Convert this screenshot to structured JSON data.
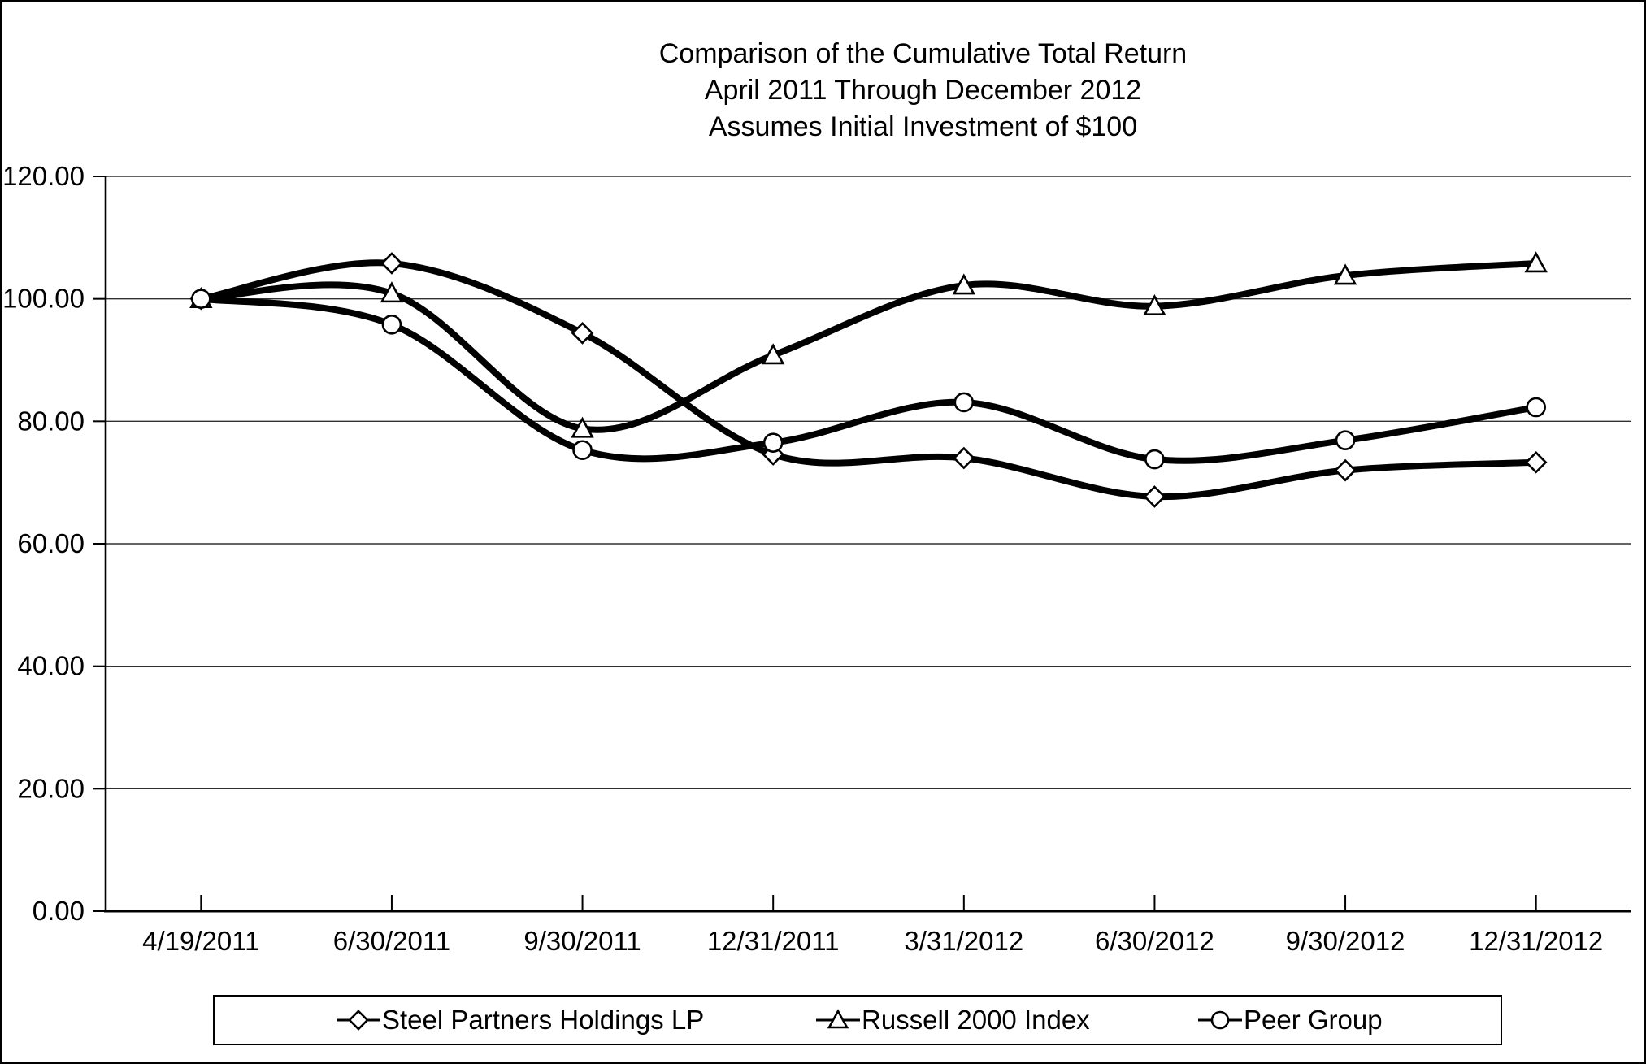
{
  "title": {
    "line1": "Comparison of the Cumulative Total Return",
    "line2": "April 2011 Through December 2012",
    "line3": "Assumes Initial Investment of $100"
  },
  "chart_data": {
    "type": "line",
    "smoothed": true,
    "title": "Comparison of the Cumulative Total Return — April 2011 Through December 2012 — Assumes Initial Investment of $100",
    "xlabel": "",
    "ylabel": "",
    "x_labels": [
      "4/19/2011",
      "6/30/2011",
      "9/30/2011",
      "12/31/2011",
      "3/31/2012",
      "6/30/2012",
      "9/30/2012",
      "12/31/2012"
    ],
    "series": [
      {
        "name": "Steel Partners Holdings LP",
        "marker": "diamond",
        "values": [
          100.0,
          105.8,
          94.4,
          74.6,
          74.0,
          67.7,
          72.0,
          73.3
        ]
      },
      {
        "name": "Russell 2000 Index",
        "marker": "triangle",
        "values": [
          100.0,
          100.9,
          78.8,
          90.8,
          102.2,
          98.8,
          103.8,
          105.8
        ]
      },
      {
        "name": "Peer Group",
        "marker": "circle",
        "values": [
          100.0,
          95.8,
          75.3,
          76.5,
          83.1,
          73.8,
          76.9,
          82.3
        ]
      }
    ],
    "ylim": [
      0,
      120
    ],
    "yticks": [
      0,
      20,
      40,
      60,
      80,
      100,
      120
    ],
    "ytick_labels": [
      "0.00",
      "20.00",
      "40.00",
      "60.00",
      "80.00",
      "100.00",
      "120.00"
    ],
    "grid": true,
    "legend_position": "bottom",
    "line_color": "#000000",
    "marker_fill": "#ffffff",
    "background": "#ffffff"
  }
}
